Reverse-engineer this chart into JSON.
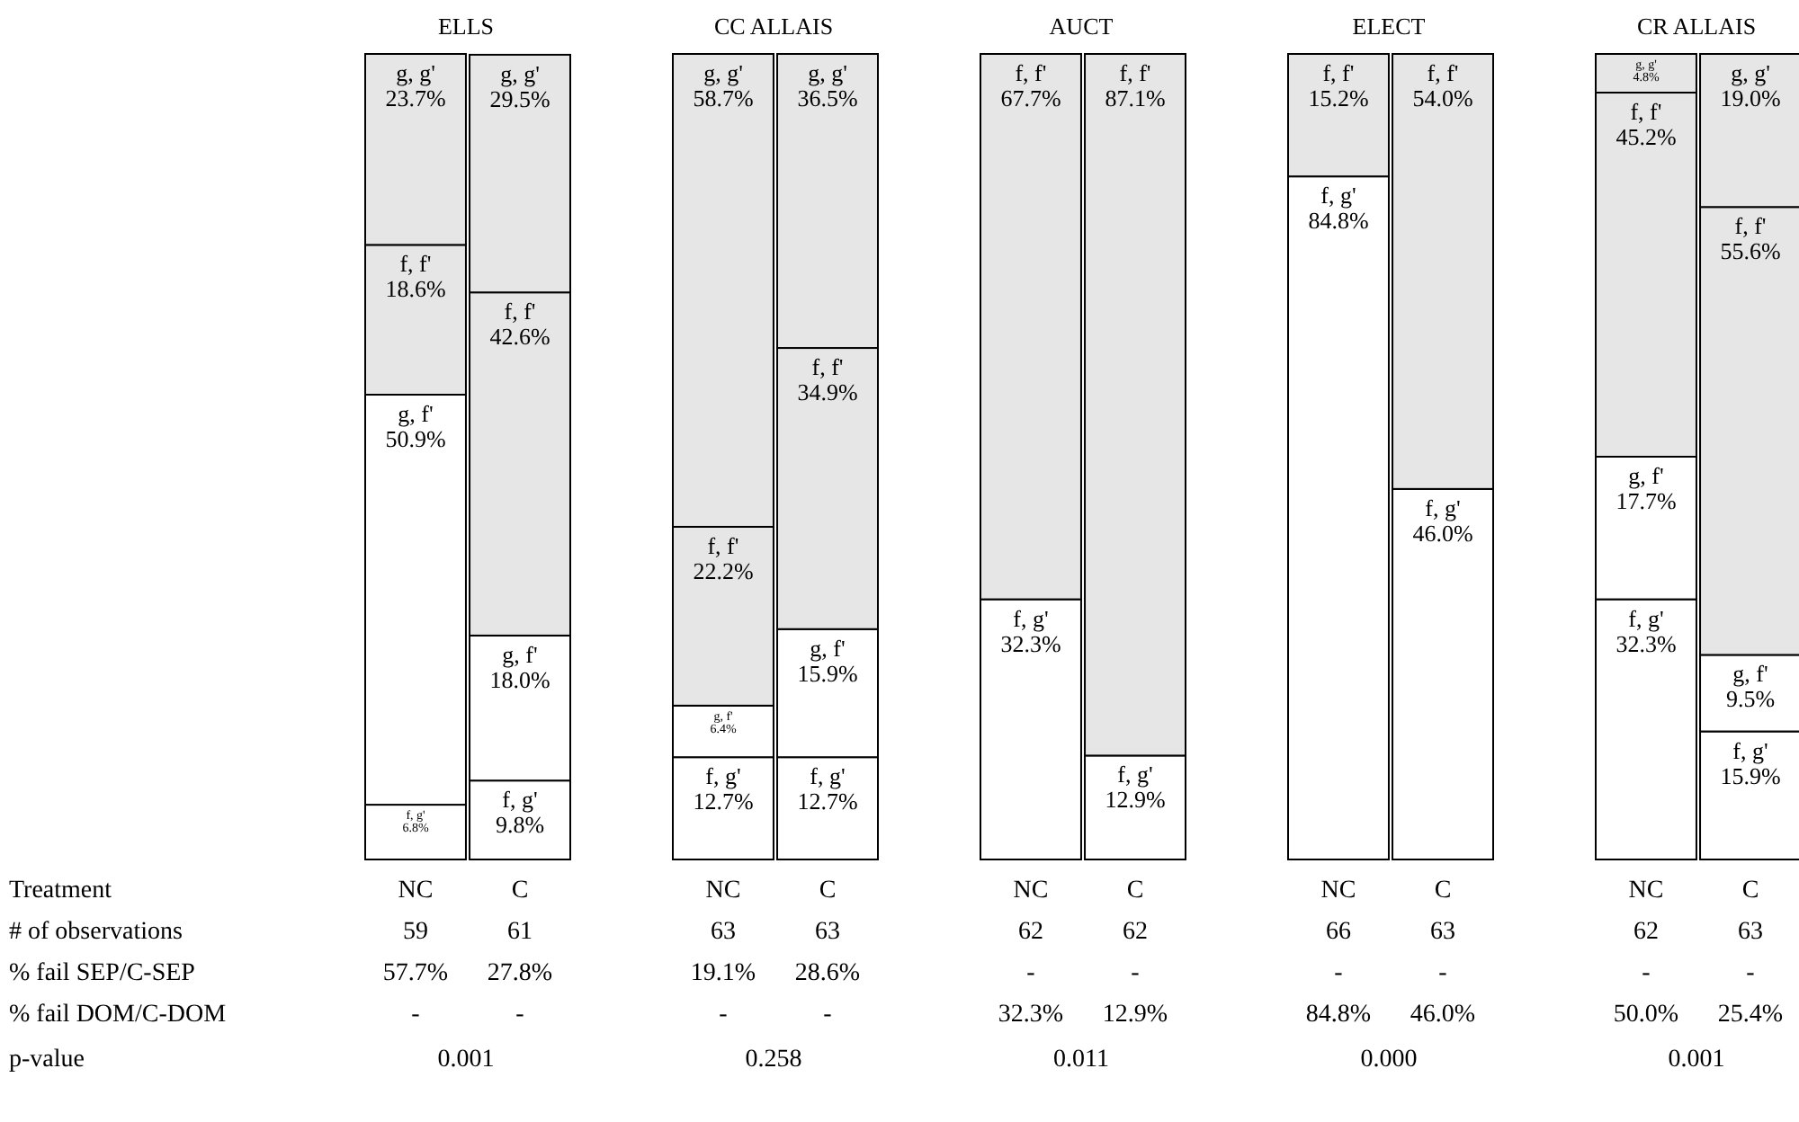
{
  "chart_data": [
    {
      "type": "other",
      "annotations": [
        "Treatment",
        "# of observations",
        "% fail SEP/C-SEP",
        "% fail DOM/C-DOM",
        "p-value"
      ]
    },
    {
      "type": "bar",
      "title": "ELLS",
      "stacked": true,
      "categories": [
        "NC",
        "C"
      ],
      "ylim": [
        0,
        100
      ],
      "tick_labels": "x",
      "series": [
        {
          "name": "f, g'",
          "color": "#ffffff",
          "values": [
            6.8,
            9.8
          ],
          "value_labels": [
            "6.8%",
            "9.8%"
          ]
        },
        {
          "name": "g, f'",
          "color": "#ffffff",
          "values": [
            50.9,
            18.0
          ],
          "value_labels": [
            "50.9%",
            "18.0%"
          ]
        },
        {
          "name": "f, f'",
          "color": "#e6e6e6",
          "values": [
            18.6,
            42.6
          ],
          "value_labels": [
            "18.6%",
            "42.6%"
          ]
        },
        {
          "name": "g, g'",
          "color": "#e6e6e6",
          "values": [
            23.7,
            29.5
          ],
          "value_labels": [
            "23.7%",
            "29.5%"
          ]
        }
      ],
      "annotations": [
        "59",
        "61",
        "57.7%",
        "27.8%",
        "-",
        "-",
        "0.001"
      ]
    },
    {
      "type": "bar",
      "title": "CC ALLAIS",
      "stacked": true,
      "categories": [
        "NC",
        "C"
      ],
      "ylim": [
        0,
        100
      ],
      "tick_labels": "x",
      "series": [
        {
          "name": "f, g'",
          "color": "#ffffff",
          "values": [
            12.7,
            12.7
          ],
          "value_labels": [
            "12.7%",
            "12.7%"
          ]
        },
        {
          "name": "g, f'",
          "color": "#ffffff",
          "values": [
            6.4,
            15.9
          ],
          "value_labels": [
            "6.4%",
            "15.9%"
          ]
        },
        {
          "name": "f, f'",
          "color": "#e6e6e6",
          "values": [
            22.2,
            34.9
          ],
          "value_labels": [
            "22.2%",
            "34.9%"
          ]
        },
        {
          "name": "g, g'",
          "color": "#e6e6e6",
          "values": [
            58.7,
            36.5
          ],
          "value_labels": [
            "58.7%",
            "36.5%"
          ]
        }
      ],
      "annotations": [
        "63",
        "63",
        "19.1%",
        "28.6%",
        "-",
        "-",
        "0.258"
      ]
    },
    {
      "type": "bar",
      "title": "AUCT",
      "stacked": true,
      "categories": [
        "NC",
        "C"
      ],
      "ylim": [
        0,
        100
      ],
      "tick_labels": "x",
      "series": [
        {
          "name": "f, g'",
          "color": "#ffffff",
          "values": [
            32.3,
            12.9
          ],
          "value_labels": [
            "32.3%",
            "12.9%"
          ]
        },
        {
          "name": "f, f'",
          "color": "#e6e6e6",
          "values": [
            67.7,
            87.1
          ],
          "value_labels": [
            "67.7%",
            "87.1%"
          ]
        }
      ],
      "annotations": [
        "62",
        "62",
        "-",
        "-",
        "32.3%",
        "12.9%",
        "0.011"
      ]
    },
    {
      "type": "bar",
      "title": "ELECT",
      "stacked": true,
      "categories": [
        "NC",
        "C"
      ],
      "ylim": [
        0,
        100
      ],
      "tick_labels": "x",
      "series": [
        {
          "name": "f, g'",
          "color": "#ffffff",
          "values": [
            84.8,
            46.0
          ],
          "value_labels": [
            "84.8%",
            "46.0%"
          ]
        },
        {
          "name": "f, f'",
          "color": "#e6e6e6",
          "values": [
            15.2,
            54.0
          ],
          "value_labels": [
            "15.2%",
            "54.0%"
          ]
        }
      ],
      "annotations": [
        "66",
        "63",
        "-",
        "-",
        "84.8%",
        "46.0%",
        "0.000"
      ]
    },
    {
      "type": "bar",
      "title": "CR ALLAIS",
      "stacked": true,
      "categories": [
        "NC",
        "C"
      ],
      "ylim": [
        0,
        100
      ],
      "tick_labels": "x",
      "series": [
        {
          "name": "f, g'",
          "color": "#ffffff",
          "values": [
            32.3,
            15.9
          ],
          "value_labels": [
            "32.3%",
            "15.9%"
          ]
        },
        {
          "name": "g, f'",
          "color": "#ffffff",
          "values": [
            17.7,
            9.5
          ],
          "value_labels": [
            "17.7%",
            "9.5%"
          ]
        },
        {
          "name": "f, f'",
          "color": "#e6e6e6",
          "values": [
            45.2,
            55.6
          ],
          "value_labels": [
            "45.2%",
            "55.6%"
          ]
        },
        {
          "name": "g, g'",
          "color": "#e6e6e6",
          "values": [
            4.8,
            19.0
          ],
          "value_labels": [
            "4.8%",
            "19.0%"
          ]
        }
      ],
      "annotations": [
        "62",
        "63",
        "-",
        "-",
        "50.0%",
        "25.4%",
        "0.001"
      ]
    }
  ]
}
